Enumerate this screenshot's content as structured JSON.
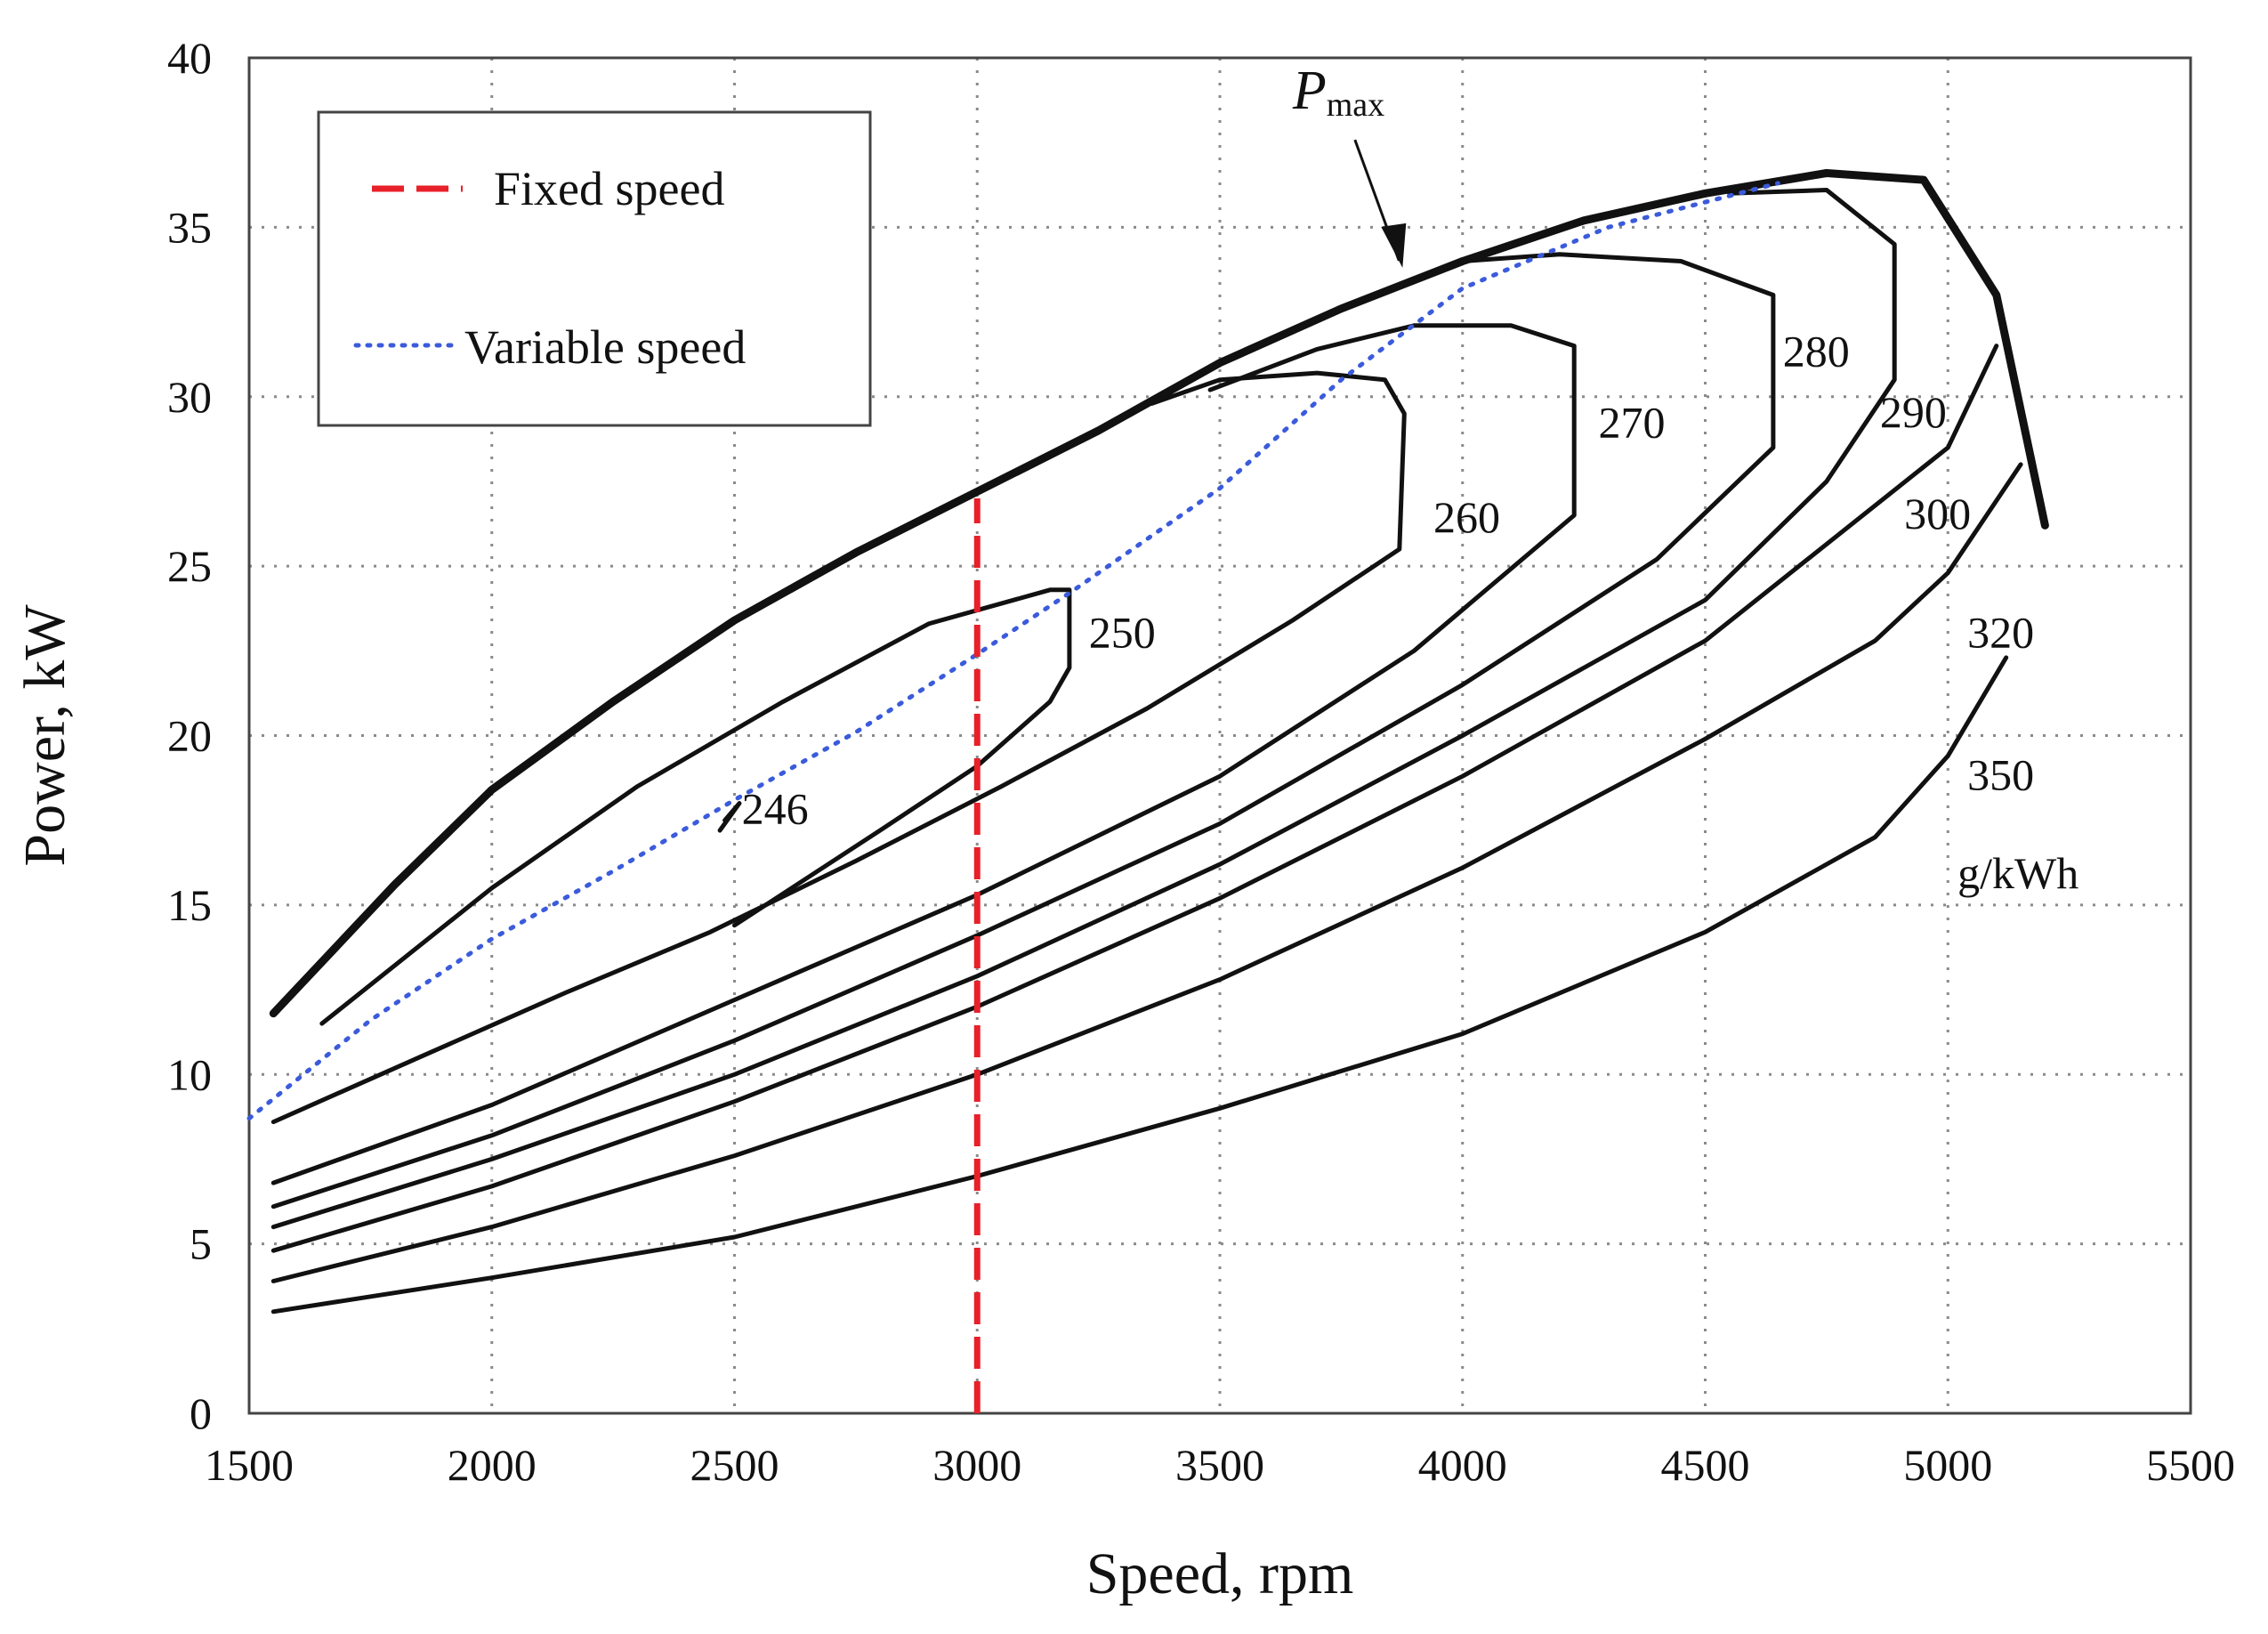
{
  "chart_data": {
    "type": "line",
    "title": "",
    "xlabel": "Speed, rpm",
    "ylabel": "Power, kW",
    "xlim": [
      1500,
      5500
    ],
    "ylim": [
      0,
      40
    ],
    "xticks": [
      1500,
      2000,
      2500,
      3000,
      3500,
      4000,
      4500,
      5000,
      5500
    ],
    "yticks": [
      0,
      5,
      10,
      15,
      20,
      25,
      30,
      35,
      40
    ],
    "xtick_labels": [
      "1500",
      "2000",
      "2500",
      "3000",
      "3500",
      "4000",
      "4500",
      "5000",
      "5500"
    ],
    "ytick_labels": [
      "0",
      "5",
      "10",
      "15",
      "20",
      "25",
      "30",
      "35",
      "40"
    ],
    "grid": true,
    "legend": {
      "position": "top-left",
      "entries": [
        {
          "label": "Fixed speed",
          "color": "#e8202a",
          "style": "dashed"
        },
        {
          "label": "Variable speed",
          "color": "#3b5bdb",
          "style": "dotted"
        }
      ]
    },
    "max_power_curve": {
      "label_main": "P",
      "label_sub": "max",
      "annotation_point": [
        3880,
        33.7
      ],
      "annotation_label_at": [
        3650,
        38.5
      ],
      "points": [
        [
          1550,
          11.8
        ],
        [
          1800,
          15.6
        ],
        [
          2000,
          18.4
        ],
        [
          2250,
          21.0
        ],
        [
          2500,
          23.4
        ],
        [
          2750,
          25.4
        ],
        [
          3000,
          27.2
        ],
        [
          3250,
          29.0
        ],
        [
          3500,
          31.0
        ],
        [
          3750,
          32.6
        ],
        [
          4000,
          34.0
        ],
        [
          4250,
          35.2
        ],
        [
          4500,
          36.0
        ],
        [
          4750,
          36.6
        ],
        [
          4950,
          36.4
        ],
        [
          5100,
          33.0
        ],
        [
          5200,
          26.2
        ]
      ]
    },
    "fixed_speed_line": {
      "x": 3000,
      "y_range": [
        0,
        27
      ]
    },
    "variable_speed_points": [
      [
        1500,
        8.7
      ],
      [
        1750,
        11.6
      ],
      [
        2000,
        14.0
      ],
      [
        2250,
        16.0
      ],
      [
        2500,
        18.1
      ],
      [
        2750,
        20.1
      ],
      [
        3000,
        22.4
      ],
      [
        3200,
        24.3
      ],
      [
        3500,
        27.3
      ],
      [
        3750,
        30.5
      ],
      [
        4000,
        33.2
      ],
      [
        4300,
        35.0
      ],
      [
        4650,
        36.3
      ]
    ],
    "contours": [
      {
        "label": "246",
        "label_at": [
          2515,
          17.4
        ],
        "points": [
          [
            2470,
            17.2
          ],
          [
            2510,
            18.0
          ],
          [
            2480,
            17.5
          ]
        ]
      },
      {
        "label": "250",
        "label_at": [
          3230,
          22.6
        ],
        "points": [
          [
            1650,
            11.5
          ],
          [
            2000,
            15.5
          ],
          [
            2300,
            18.5
          ],
          [
            2600,
            21.0
          ],
          [
            2900,
            23.3
          ],
          [
            3150,
            24.3
          ],
          [
            3190,
            24.3
          ],
          [
            3190,
            22.0
          ],
          [
            3150,
            21.0
          ],
          [
            3000,
            19.1
          ],
          [
            2800,
            17.2
          ],
          [
            2500,
            14.4
          ]
        ]
      },
      {
        "label": "260",
        "label_at": [
          3940,
          26.0
        ],
        "points": [
          [
            1550,
            8.6
          ],
          [
            1850,
            10.5
          ],
          [
            2150,
            12.4
          ],
          [
            2450,
            14.2
          ],
          [
            2750,
            16.3
          ],
          [
            3050,
            18.5
          ],
          [
            3350,
            20.8
          ],
          [
            3650,
            23.4
          ],
          [
            3870,
            25.5
          ],
          [
            3880,
            29.5
          ],
          [
            3840,
            30.5
          ],
          [
            3700,
            30.7
          ],
          [
            3500,
            30.5
          ],
          [
            3360,
            29.8
          ]
        ]
      },
      {
        "label": "270",
        "label_at": [
          4280,
          28.8
        ],
        "points": [
          [
            1550,
            6.8
          ],
          [
            2000,
            9.1
          ],
          [
            2500,
            12.2
          ],
          [
            3000,
            15.3
          ],
          [
            3500,
            18.8
          ],
          [
            3900,
            22.5
          ],
          [
            4230,
            26.5
          ],
          [
            4230,
            31.5
          ],
          [
            4100,
            32.1
          ],
          [
            3900,
            32.1
          ],
          [
            3700,
            31.4
          ],
          [
            3480,
            30.2
          ]
        ]
      },
      {
        "label": "280",
        "label_at": [
          4660,
          30.9
        ],
        "points": [
          [
            1550,
            6.1
          ],
          [
            2000,
            8.2
          ],
          [
            2500,
            11.0
          ],
          [
            3000,
            14.1
          ],
          [
            3500,
            17.4
          ],
          [
            4000,
            21.5
          ],
          [
            4400,
            25.2
          ],
          [
            4640,
            28.5
          ],
          [
            4640,
            33.0
          ],
          [
            4450,
            34.0
          ],
          [
            4200,
            34.2
          ],
          [
            4000,
            34.0
          ]
        ]
      },
      {
        "label": "290",
        "label_at": [
          4860,
          29.1
        ],
        "points": [
          [
            1550,
            5.5
          ],
          [
            2000,
            7.5
          ],
          [
            2500,
            10.0
          ],
          [
            3000,
            12.9
          ],
          [
            3500,
            16.2
          ],
          [
            4000,
            20.0
          ],
          [
            4500,
            24.0
          ],
          [
            4750,
            27.5
          ],
          [
            4890,
            30.5
          ],
          [
            4890,
            34.5
          ],
          [
            4750,
            36.1
          ],
          [
            4550,
            36.0
          ]
        ]
      },
      {
        "label": "300",
        "label_at": [
          4910,
          26.1
        ],
        "points": [
          [
            1550,
            4.8
          ],
          [
            2000,
            6.7
          ],
          [
            2500,
            9.2
          ],
          [
            3000,
            12.0
          ],
          [
            3500,
            15.2
          ],
          [
            4000,
            18.8
          ],
          [
            4500,
            22.8
          ],
          [
            5000,
            28.5
          ],
          [
            5100,
            31.5
          ]
        ]
      },
      {
        "label": "320",
        "label_at": [
          5040,
          22.6
        ],
        "points": [
          [
            1550,
            3.9
          ],
          [
            2000,
            5.5
          ],
          [
            2500,
            7.6
          ],
          [
            3000,
            10.0
          ],
          [
            3500,
            12.8
          ],
          [
            4000,
            16.1
          ],
          [
            4500,
            19.9
          ],
          [
            4850,
            22.8
          ],
          [
            5000,
            24.8
          ],
          [
            5150,
            28.0
          ]
        ]
      },
      {
        "label": "350",
        "label_at": [
          5040,
          18.4
        ],
        "points": [
          [
            1550,
            3.0
          ],
          [
            2000,
            4.0
          ],
          [
            2500,
            5.2
          ],
          [
            3000,
            7.0
          ],
          [
            3500,
            9.0
          ],
          [
            4000,
            11.2
          ],
          [
            4500,
            14.2
          ],
          [
            4850,
            17.0
          ],
          [
            5000,
            19.4
          ],
          [
            5120,
            22.3
          ]
        ]
      }
    ],
    "unit_label": "g/kWh",
    "unit_label_at": [
      5020,
      15.5
    ]
  }
}
